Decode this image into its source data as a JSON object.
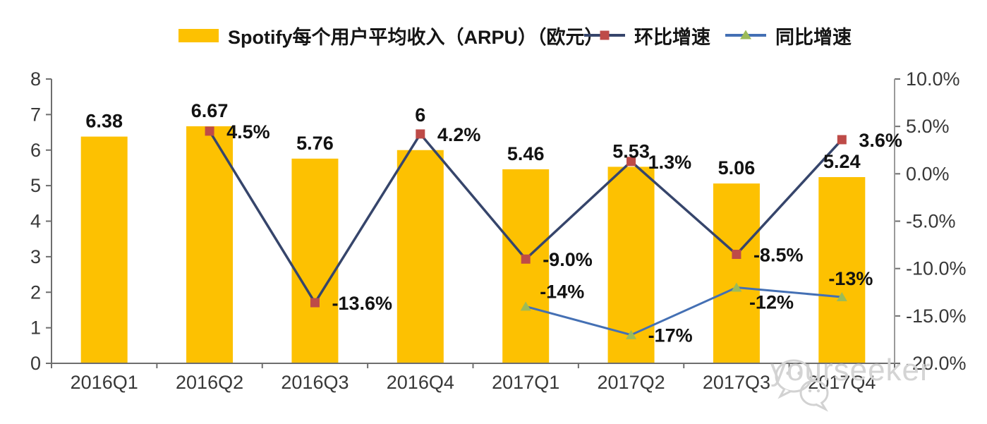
{
  "legend": {
    "arpu": {
      "label": "Spotify每个用户平均收入（ARPU）（欧元）",
      "swatch_color": "#FDC101"
    },
    "qoq": {
      "label": "环比增速",
      "line_color": "#36456B",
      "marker_color": "#BE4B48"
    },
    "yoy": {
      "label": "同比增速",
      "line_color": "#4470B4",
      "marker_color": "#9CBB59"
    }
  },
  "chart_data": {
    "type": "combo",
    "categories": [
      "2016Q1",
      "2016Q2",
      "2016Q3",
      "2016Q4",
      "2017Q1",
      "2017Q2",
      "2017Q3",
      "2017Q4"
    ],
    "bar_series": {
      "name": "Spotify每个用户平均收入（ARPU）（欧元）",
      "axis": "left",
      "color": "#FDC101",
      "values": [
        6.38,
        6.67,
        5.76,
        6,
        5.46,
        5.53,
        5.06,
        5.24
      ],
      "labels": [
        "6.38",
        "6.67",
        "5.76",
        "6",
        "5.46",
        "5.53",
        "5.06",
        "5.24"
      ],
      "label_dy": [
        0,
        0,
        0,
        -28,
        0,
        0,
        0,
        0
      ]
    },
    "line_series": [
      {
        "name": "环比增速",
        "axis": "right",
        "color": "#36456B",
        "marker": "square",
        "marker_color": "#BE4B48",
        "points": [
          {
            "category": "2016Q2",
            "index": 1,
            "value": 4.5,
            "label": "4.5%",
            "label_pos": "right"
          },
          {
            "category": "2016Q3",
            "index": 2,
            "value": -13.6,
            "label": "-13.6%",
            "label_pos": "right"
          },
          {
            "category": "2016Q4",
            "index": 3,
            "value": 4.2,
            "label": "4.2%",
            "label_pos": "right"
          },
          {
            "category": "2017Q1",
            "index": 4,
            "value": -9.0,
            "label": "-9.0%",
            "label_pos": "right"
          },
          {
            "category": "2017Q2",
            "index": 5,
            "value": 1.3,
            "label": "1.3%",
            "label_pos": "right"
          },
          {
            "category": "2017Q3",
            "index": 6,
            "value": -8.5,
            "label": "-8.5%",
            "label_pos": "right"
          },
          {
            "category": "2017Q4",
            "index": 7,
            "value": 3.6,
            "label": "3.6%",
            "label_pos": "right"
          }
        ]
      },
      {
        "name": "同比增速",
        "axis": "right",
        "color": "#4470B4",
        "marker": "triangle",
        "marker_color": "#9CBB59",
        "points": [
          {
            "category": "2017Q1",
            "index": 4,
            "value": -14,
            "label": "-14%",
            "label_pos": "above-right"
          },
          {
            "category": "2017Q2",
            "index": 5,
            "value": -17,
            "label": "-17%",
            "label_pos": "right"
          },
          {
            "category": "2017Q3",
            "index": 6,
            "value": -12,
            "label": "-12%",
            "label_pos": "below-right"
          },
          {
            "category": "2017Q4",
            "index": 7,
            "value": -13,
            "label": "-13%",
            "label_pos": "above"
          }
        ]
      }
    ],
    "left_axis": {
      "min": 0,
      "max": 8,
      "tick_labels": [
        "0",
        "1",
        "2",
        "3",
        "4",
        "5",
        "6",
        "7",
        "8"
      ]
    },
    "right_axis": {
      "min": -20,
      "max": 10,
      "tick_values": [
        10,
        5,
        0,
        -5,
        -10,
        -15,
        -20
      ],
      "tick_labels": [
        "10.0%",
        "5.0%",
        "0.0%",
        "-5.0%",
        "-10.0%",
        "-15.0%",
        "-20.0%"
      ]
    },
    "grid": false,
    "legend_position": "top"
  },
  "watermark": {
    "text": "yourseeker",
    "icon": "wechat-icon"
  }
}
